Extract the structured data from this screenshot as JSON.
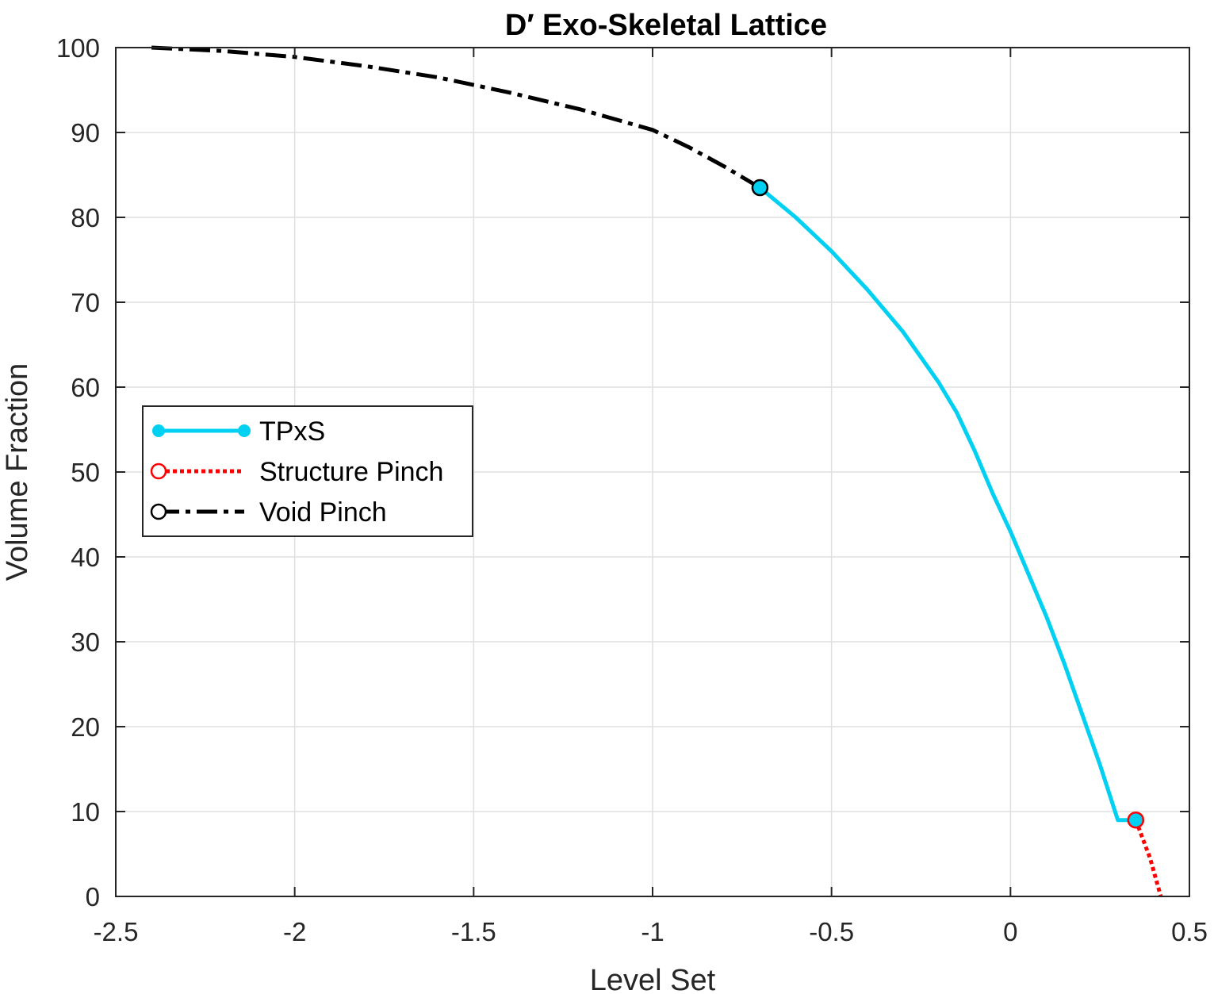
{
  "chart_data": {
    "type": "line",
    "title": "D′ Exo-Skeletal Lattice",
    "xlabel": "Level Set",
    "ylabel": "Volume Fraction",
    "xlim": [
      -2.5,
      0.5
    ],
    "ylim": [
      0,
      100
    ],
    "xticks": [
      -2.5,
      -2,
      -1.5,
      -1,
      -0.5,
      0,
      0.5
    ],
    "xtick_labels": [
      "-2.5",
      "-2",
      "-1.5",
      "-1",
      "-0.5",
      "0",
      "0.5"
    ],
    "yticks": [
      0,
      10,
      20,
      30,
      40,
      50,
      60,
      70,
      80,
      90,
      100
    ],
    "ytick_labels": [
      "0",
      "10",
      "20",
      "30",
      "40",
      "50",
      "60",
      "70",
      "80",
      "90",
      "100"
    ],
    "grid": true,
    "legend_position": "center-left",
    "series": [
      {
        "name": "TPxS",
        "color": "#00d0f2",
        "line_style": "solid",
        "marker": "filled-circle",
        "x": [
          -0.7,
          -0.6,
          -0.5,
          -0.4,
          -0.3,
          -0.2,
          -0.15,
          -0.1,
          -0.05,
          0.0,
          0.05,
          0.1,
          0.15,
          0.2,
          0.25,
          0.3,
          0.35
        ],
        "y": [
          83.5,
          80.0,
          76.0,
          71.5,
          66.5,
          60.5,
          57.0,
          52.5,
          47.5,
          43.0,
          38.0,
          33.0,
          27.5,
          21.5,
          15.5,
          9.0,
          9.0
        ]
      },
      {
        "name": "Structure Pinch",
        "color": "#ff0000",
        "line_style": "dotted",
        "marker": "open-circle",
        "x": [
          0.35,
          0.39,
          0.42
        ],
        "y": [
          9.0,
          4.5,
          0.0
        ]
      },
      {
        "name": "Void Pinch",
        "color": "#000000",
        "line_style": "dash-dot",
        "marker": "open-circle",
        "x": [
          -2.4,
          -2.2,
          -2.0,
          -1.8,
          -1.6,
          -1.4,
          -1.2,
          -1.0,
          -0.9,
          -0.8,
          -0.7
        ],
        "y": [
          100.0,
          99.6,
          98.9,
          97.8,
          96.5,
          94.7,
          92.7,
          90.3,
          88.3,
          86.0,
          83.5
        ]
      }
    ],
    "highlight_points": [
      {
        "series": "Void Pinch",
        "x": -0.7,
        "y": 83.5
      },
      {
        "series": "Structure Pinch",
        "x": 0.35,
        "y": 9.0
      }
    ]
  }
}
